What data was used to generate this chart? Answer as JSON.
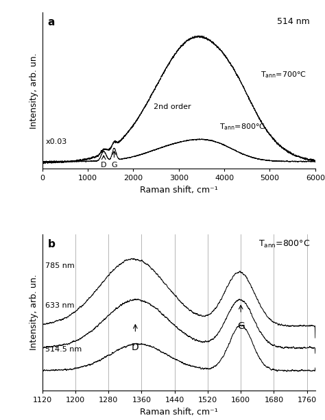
{
  "panel_a": {
    "title_text": "514 nm",
    "label": "a",
    "xlabel": "Raman shift, cm⁻¹",
    "ylabel": "Intensity, arb. un.",
    "xlim": [
      0,
      6000
    ],
    "xticks": [
      0,
      1000,
      2000,
      3000,
      4000,
      5000,
      6000
    ],
    "annotation_scale": "x0.03",
    "annotation_2nd": "2nd order",
    "D_label": "D",
    "G_label": "G"
  },
  "panel_b": {
    "label": "b",
    "xlabel": "Raman shift, cm⁻¹",
    "ylabel": "Intensity, arb. un.",
    "xlim": [
      1120,
      1780
    ],
    "xticks": [
      1120,
      1200,
      1280,
      1360,
      1440,
      1520,
      1600,
      1680,
      1760
    ],
    "curve1_label": "785 nm",
    "curve2_label": "633 nm",
    "curve3_label": "514.5 nm",
    "D_label": "D",
    "G_label": "G"
  },
  "background_color": "#ffffff",
  "line_color": "#000000"
}
